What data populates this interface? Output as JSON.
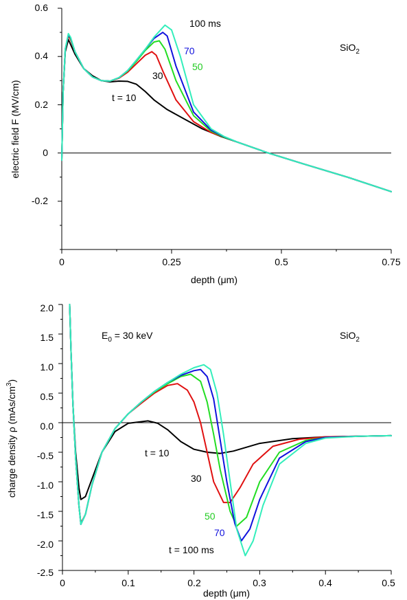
{
  "chart_data": [
    {
      "type": "line",
      "title": "",
      "xlabel": "depth (μm)",
      "ylabel": "electric field  F  (MV/cm)",
      "xlim": [
        0,
        0.75
      ],
      "ylim": [
        -0.4,
        0.6
      ],
      "x_ticks": [
        "0",
        "0.25",
        "0.5",
        "0.75"
      ],
      "y_ticks": [
        "0.6",
        "0.4",
        "0.2",
        "0",
        "-0.2"
      ],
      "material_label": "SiO",
      "material_sub": "2",
      "grid": false,
      "series": [
        {
          "name": "t = 10",
          "color": "#000000",
          "label_color": "#000000",
          "x": [
            0,
            0.003,
            0.008,
            0.015,
            0.02,
            0.03,
            0.05,
            0.07,
            0.09,
            0.11,
            0.13,
            0.15,
            0.17,
            0.19,
            0.21,
            0.24,
            0.28,
            0.32,
            0.36,
            0.4,
            0.47,
            0.55,
            0.65,
            0.75
          ],
          "y": [
            -0.03,
            0.25,
            0.42,
            0.47,
            0.45,
            0.41,
            0.35,
            0.32,
            0.3,
            0.295,
            0.298,
            0.297,
            0.285,
            0.255,
            0.22,
            0.18,
            0.14,
            0.1,
            0.07,
            0.045,
            0.0,
            -0.045,
            -0.1,
            -0.16
          ]
        },
        {
          "name": "30",
          "color": "#e01010",
          "label_color": "#000000",
          "x": [
            0,
            0.003,
            0.008,
            0.015,
            0.02,
            0.03,
            0.05,
            0.07,
            0.09,
            0.11,
            0.13,
            0.15,
            0.17,
            0.19,
            0.205,
            0.215,
            0.23,
            0.26,
            0.3,
            0.34,
            0.37,
            0.4,
            0.47,
            0.55,
            0.65,
            0.75
          ],
          "y": [
            -0.03,
            0.25,
            0.43,
            0.485,
            0.47,
            0.42,
            0.35,
            0.315,
            0.3,
            0.298,
            0.31,
            0.335,
            0.37,
            0.405,
            0.42,
            0.405,
            0.34,
            0.22,
            0.13,
            0.085,
            0.065,
            0.045,
            0.0,
            -0.045,
            -0.1,
            -0.16
          ]
        },
        {
          "name": "50",
          "color": "#22dd22",
          "label_color": "#22cc22",
          "x": [
            0,
            0.003,
            0.008,
            0.015,
            0.02,
            0.03,
            0.05,
            0.07,
            0.09,
            0.11,
            0.13,
            0.15,
            0.17,
            0.19,
            0.21,
            0.222,
            0.235,
            0.26,
            0.3,
            0.34,
            0.37,
            0.4,
            0.47,
            0.55,
            0.65,
            0.75
          ],
          "y": [
            -0.03,
            0.25,
            0.43,
            0.49,
            0.475,
            0.42,
            0.35,
            0.315,
            0.3,
            0.298,
            0.312,
            0.34,
            0.38,
            0.425,
            0.46,
            0.465,
            0.43,
            0.3,
            0.155,
            0.09,
            0.065,
            0.045,
            0.0,
            -0.045,
            -0.1,
            -0.16
          ]
        },
        {
          "name": "70",
          "color": "#1010dd",
          "label_color": "#1010dd",
          "x": [
            0,
            0.003,
            0.008,
            0.015,
            0.02,
            0.03,
            0.05,
            0.07,
            0.09,
            0.11,
            0.13,
            0.15,
            0.17,
            0.19,
            0.21,
            0.23,
            0.24,
            0.26,
            0.3,
            0.34,
            0.37,
            0.4,
            0.47,
            0.55,
            0.65,
            0.75
          ],
          "y": [
            -0.03,
            0.25,
            0.43,
            0.49,
            0.478,
            0.42,
            0.35,
            0.315,
            0.3,
            0.298,
            0.312,
            0.342,
            0.385,
            0.43,
            0.475,
            0.5,
            0.485,
            0.36,
            0.17,
            0.095,
            0.067,
            0.045,
            0.0,
            -0.045,
            -0.1,
            -0.16
          ]
        },
        {
          "name": "100 ms",
          "color": "#33eebb",
          "label_color": "#000000",
          "x": [
            0,
            0.003,
            0.008,
            0.015,
            0.02,
            0.03,
            0.05,
            0.07,
            0.09,
            0.11,
            0.13,
            0.15,
            0.17,
            0.19,
            0.21,
            0.235,
            0.25,
            0.27,
            0.3,
            0.34,
            0.37,
            0.4,
            0.47,
            0.55,
            0.65,
            0.75
          ],
          "y": [
            -0.03,
            0.25,
            0.43,
            0.495,
            0.48,
            0.42,
            0.35,
            0.315,
            0.3,
            0.298,
            0.312,
            0.342,
            0.385,
            0.43,
            0.48,
            0.53,
            0.51,
            0.4,
            0.2,
            0.1,
            0.068,
            0.045,
            0.0,
            -0.045,
            -0.1,
            -0.16
          ]
        }
      ],
      "labels": {
        "t10": "t = 10",
        "l30": "30",
        "l50": "50",
        "l70": "70",
        "l100": "100 ms"
      }
    },
    {
      "type": "line",
      "title": "",
      "xlabel": "depth (μm)",
      "ylabel": "charge density ρ  (mAs/cm",
      "ylabel_sup": "3",
      "ylabel_end": ")",
      "xlim": [
        0,
        0.5
      ],
      "ylim": [
        -2.5,
        2.0
      ],
      "x_ticks": [
        "0",
        "0.1",
        "0.2",
        "0.3",
        "0.4",
        "0.5"
      ],
      "y_ticks": [
        "2.0",
        "1.5",
        "1.0",
        "0.5",
        "0.0",
        "-0.5",
        "-1.0",
        "-1.5",
        "-2.0",
        "-2.5"
      ],
      "material_label": "SiO",
      "material_sub": "2",
      "energy_label": "E",
      "energy_sub": "0",
      "energy_value": " = 30 keV",
      "grid": false,
      "series": [
        {
          "name": "t = 10",
          "color": "#000000",
          "label_color": "#000000",
          "x": [
            0.011,
            0.013,
            0.016,
            0.02,
            0.025,
            0.028,
            0.035,
            0.045,
            0.06,
            0.08,
            0.1,
            0.115,
            0.13,
            0.145,
            0.16,
            0.18,
            0.2,
            0.22,
            0.24,
            0.26,
            0.3,
            0.35,
            0.4,
            0.45,
            0.5
          ],
          "y": [
            2.0,
            1.2,
            0.3,
            -0.5,
            -1.1,
            -1.3,
            -1.25,
            -0.95,
            -0.5,
            -0.15,
            -0.01,
            0.01,
            0.03,
            -0.01,
            -0.12,
            -0.32,
            -0.45,
            -0.5,
            -0.52,
            -0.48,
            -0.35,
            -0.27,
            -0.24,
            -0.23,
            -0.22
          ]
        },
        {
          "name": "30",
          "color": "#e01010",
          "label_color": "#000000",
          "x": [
            0.011,
            0.013,
            0.016,
            0.02,
            0.025,
            0.028,
            0.035,
            0.045,
            0.06,
            0.08,
            0.1,
            0.12,
            0.14,
            0.16,
            0.175,
            0.19,
            0.2,
            0.21,
            0.22,
            0.23,
            0.245,
            0.255,
            0.27,
            0.29,
            0.32,
            0.36,
            0.4,
            0.45,
            0.5
          ],
          "y": [
            2.0,
            1.2,
            0.3,
            -0.6,
            -1.4,
            -1.7,
            -1.55,
            -1.05,
            -0.5,
            -0.1,
            0.15,
            0.33,
            0.5,
            0.63,
            0.66,
            0.55,
            0.35,
            0.0,
            -0.5,
            -1.0,
            -1.35,
            -1.35,
            -1.1,
            -0.7,
            -0.4,
            -0.28,
            -0.24,
            -0.23,
            -0.22
          ]
        },
        {
          "name": "50",
          "color": "#22dd22",
          "label_color": "#22cc22",
          "x": [
            0.011,
            0.013,
            0.016,
            0.02,
            0.025,
            0.028,
            0.035,
            0.045,
            0.06,
            0.08,
            0.1,
            0.12,
            0.14,
            0.16,
            0.18,
            0.195,
            0.21,
            0.22,
            0.23,
            0.24,
            0.255,
            0.265,
            0.28,
            0.3,
            0.33,
            0.37,
            0.4,
            0.45,
            0.5
          ],
          "y": [
            2.0,
            1.2,
            0.3,
            -0.6,
            -1.4,
            -1.72,
            -1.55,
            -1.05,
            -0.5,
            -0.1,
            0.15,
            0.35,
            0.52,
            0.66,
            0.78,
            0.82,
            0.7,
            0.35,
            -0.2,
            -0.8,
            -1.5,
            -1.75,
            -1.6,
            -1.0,
            -0.5,
            -0.3,
            -0.25,
            -0.23,
            -0.22
          ]
        },
        {
          "name": "70",
          "color": "#1010dd",
          "label_color": "#1010dd",
          "x": [
            0.011,
            0.013,
            0.016,
            0.02,
            0.025,
            0.028,
            0.035,
            0.045,
            0.06,
            0.08,
            0.1,
            0.12,
            0.14,
            0.16,
            0.18,
            0.2,
            0.21,
            0.22,
            0.23,
            0.24,
            0.25,
            0.262,
            0.272,
            0.285,
            0.3,
            0.33,
            0.37,
            0.4,
            0.45,
            0.5
          ],
          "y": [
            2.0,
            1.2,
            0.3,
            -0.6,
            -1.4,
            -1.72,
            -1.55,
            -1.05,
            -0.5,
            -0.1,
            0.15,
            0.35,
            0.53,
            0.68,
            0.8,
            0.88,
            0.9,
            0.78,
            0.4,
            -0.3,
            -1.0,
            -1.7,
            -2.0,
            -1.8,
            -1.3,
            -0.6,
            -0.32,
            -0.25,
            -0.23,
            -0.22
          ]
        },
        {
          "name": "t = 100 ms",
          "color": "#33eebb",
          "label_color": "#000000",
          "x": [
            0.011,
            0.013,
            0.016,
            0.02,
            0.025,
            0.028,
            0.035,
            0.045,
            0.06,
            0.08,
            0.1,
            0.12,
            0.14,
            0.16,
            0.18,
            0.2,
            0.215,
            0.225,
            0.235,
            0.245,
            0.255,
            0.265,
            0.278,
            0.29,
            0.305,
            0.33,
            0.37,
            0.4,
            0.45,
            0.5
          ],
          "y": [
            2.0,
            1.2,
            0.3,
            -0.6,
            -1.4,
            -1.72,
            -1.55,
            -1.05,
            -0.5,
            -0.1,
            0.15,
            0.35,
            0.53,
            0.68,
            0.82,
            0.93,
            0.98,
            0.9,
            0.5,
            -0.2,
            -1.0,
            -1.8,
            -2.25,
            -2.0,
            -1.4,
            -0.7,
            -0.35,
            -0.26,
            -0.23,
            -0.22
          ]
        }
      ],
      "labels": {
        "t10": "t = 10",
        "l30": "30",
        "l50": "50",
        "l70": "70",
        "l100": "t = 100 ms"
      }
    }
  ]
}
